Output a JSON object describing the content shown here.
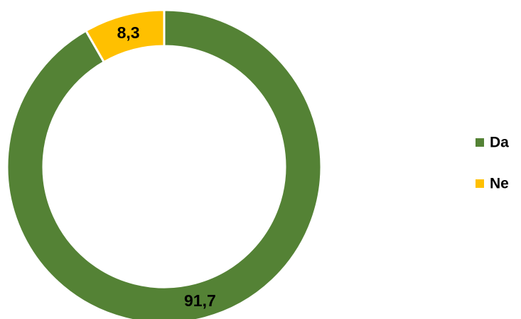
{
  "chart_data": {
    "type": "pie",
    "style": "donut",
    "title": "",
    "categories": [
      "Da",
      "Ne"
    ],
    "values": [
      91.7,
      8.3
    ],
    "data_labels": [
      "91,7",
      "8,3"
    ],
    "colors": [
      "#548235",
      "#FFC000"
    ],
    "legend": {
      "position": "right",
      "entries": [
        "Da",
        "Ne"
      ]
    }
  }
}
